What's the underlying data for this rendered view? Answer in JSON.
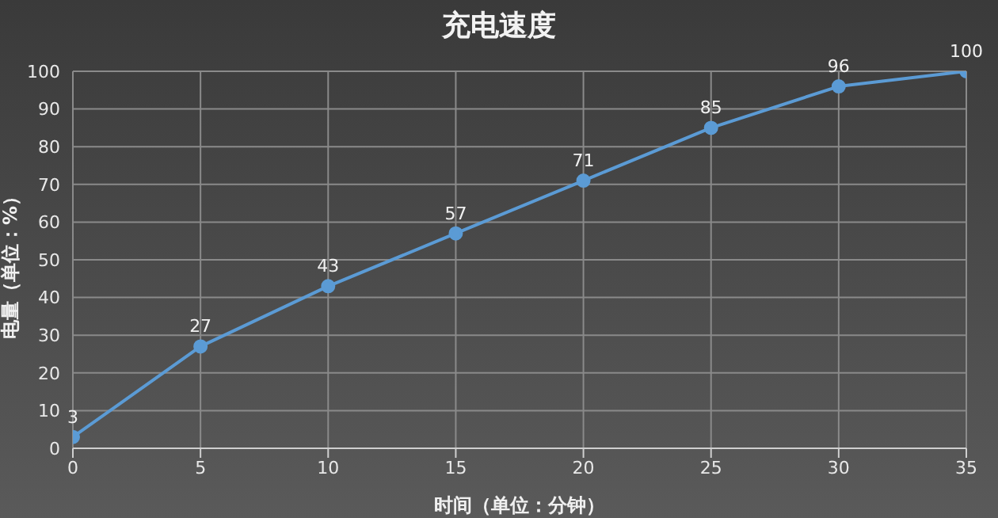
{
  "chart_data": {
    "type": "line",
    "title": "充电速度",
    "xlabel": "时间（单位：分钟）",
    "ylabel": "电量（单位：%）",
    "x": [
      0,
      5,
      10,
      15,
      20,
      25,
      30,
      35
    ],
    "series": [
      {
        "color": "#5b9bd5",
        "values": [
          3,
          27,
          43,
          57,
          71,
          85,
          96,
          100
        ]
      }
    ],
    "xlim": [
      0,
      35
    ],
    "xticks": [
      0,
      5,
      10,
      15,
      20,
      25,
      30,
      35
    ],
    "ylim": [
      0,
      100
    ],
    "yticks": [
      0,
      10,
      20,
      30,
      40,
      50,
      60,
      70,
      80,
      90,
      100
    ],
    "grid": true,
    "marker": "circle",
    "line_style": "solid",
    "data_labels": true,
    "legend": false
  }
}
